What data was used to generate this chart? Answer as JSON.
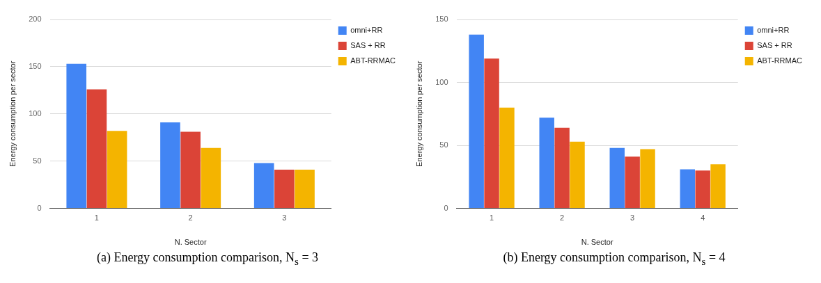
{
  "chart_data": [
    {
      "type": "bar",
      "categories": [
        "1",
        "2",
        "3"
      ],
      "xlabel": "N. Sector",
      "ylabel": "Energy consumption per sector",
      "ylim": [
        0,
        200
      ],
      "yticks": [
        0,
        50,
        100,
        150,
        200
      ],
      "grid": "y",
      "legend": "top right",
      "series": [
        {
          "name": "omni+RR",
          "color": "#4285f4",
          "values": [
            153,
            91,
            48
          ]
        },
        {
          "name": "SAS + RR",
          "color": "#db4437",
          "values": [
            126,
            81,
            41
          ]
        },
        {
          "name": "ABT-RRMAC",
          "color": "#f4b400",
          "values": [
            82,
            64,
            41
          ]
        }
      ],
      "annotations": [
        "(a)  Energy consumption comparison, N$_{s}$ = 3"
      ]
    },
    {
      "type": "bar",
      "categories": [
        "1",
        "2",
        "3",
        "4"
      ],
      "xlabel": "N. Sector",
      "ylabel": "Energy consumption per sector",
      "ylim": [
        0,
        150
      ],
      "yticks": [
        0,
        50,
        100,
        150
      ],
      "grid": "y",
      "legend": "top right",
      "series": [
        {
          "name": "omni+RR",
          "color": "#4285f4",
          "values": [
            138,
            72,
            48,
            31
          ]
        },
        {
          "name": "SAS + RR",
          "color": "#db4437",
          "values": [
            119,
            64,
            41,
            30
          ]
        },
        {
          "name": "ABT-RRMAC",
          "color": "#f4b400",
          "values": [
            80,
            53,
            47,
            35
          ]
        }
      ],
      "annotations": [
        "(b)  Energy consumption comparison, N$_{s}$ = 4"
      ]
    }
  ]
}
